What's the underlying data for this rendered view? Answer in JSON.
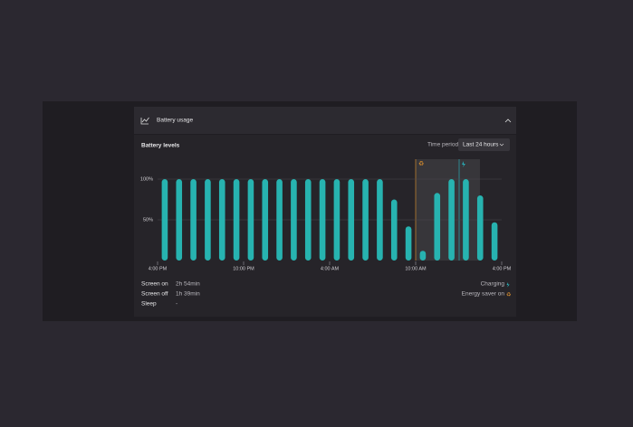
{
  "header": {
    "title": "Battery usage"
  },
  "controls": {
    "section_title": "Battery levels",
    "period_label": "Time period:",
    "period_value": "Last 24 hours"
  },
  "chart_data": {
    "type": "bar",
    "color": "#27b3b0",
    "categories": [
      null,
      null,
      null,
      null,
      null,
      null,
      null,
      null,
      null,
      null,
      null,
      null,
      null,
      null,
      null,
      null,
      null,
      null,
      null,
      null,
      null,
      null,
      null,
      null
    ],
    "values": [
      100,
      100,
      100,
      100,
      100,
      100,
      100,
      100,
      100,
      100,
      100,
      100,
      100,
      100,
      100,
      100,
      75,
      42,
      12,
      83,
      100,
      100,
      80,
      47
    ],
    "ylim": [
      0,
      120
    ],
    "yticks": [
      {
        "value": 50,
        "label": "50%"
      },
      {
        "value": 100,
        "label": "100%"
      }
    ],
    "xlim": [
      0,
      24
    ],
    "xticks": [
      {
        "value": 0,
        "label": "4:00 PM"
      },
      {
        "value": 6,
        "label": "10:00 PM"
      },
      {
        "value": 12,
        "label": "4:00 AM"
      },
      {
        "value": 18,
        "label": "10:00 AM"
      },
      {
        "value": 24,
        "label": "4:00 PM"
      }
    ],
    "grid": true
  },
  "stats": [
    {
      "label": "Screen on",
      "value": "2h 54min"
    },
    {
      "label": "Screen off",
      "value": "1h 39min"
    },
    {
      "label": "Sleep",
      "value": "-"
    }
  ],
  "legend": [
    {
      "label": "Charging"
    },
    {
      "label": "Energy saver on"
    }
  ]
}
